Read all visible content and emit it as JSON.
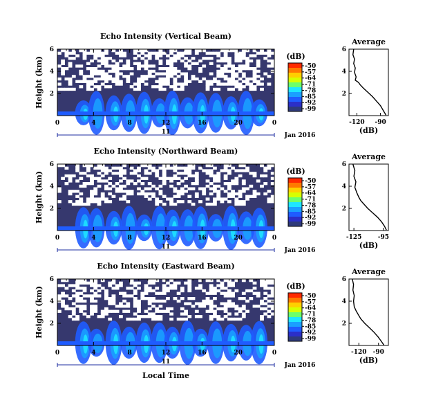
{
  "colorbar_unit": "(dB)",
  "colorbar_ticks": [
    "-50",
    "-57",
    "-64",
    "-71",
    "-78",
    "-85",
    "-92",
    "-99"
  ],
  "colorbar_colors": [
    "#ff2a00",
    "#ff7a00",
    "#ffd000",
    "#d8ff00",
    "#6cff6c",
    "#1ee6ff",
    "#1aa0ff",
    "#1f5cff",
    "#2b2fc8",
    "#2e3a7a"
  ],
  "background_color": "#36386e",
  "date_label": "Jan 2016",
  "x_label": "Local Time",
  "day_label": "11",
  "panels": [
    {
      "title": "Echo Intensity (Vertical Beam)"
    },
    {
      "title": "Echo Intensity (Northward Beam)"
    },
    {
      "title": "Echo Intensity (Eastward Beam)"
    }
  ],
  "chart_data": [
    {
      "type": "heatmap",
      "title": "Echo Intensity (Vertical Beam)",
      "xlabel": "",
      "ylabel": "Height (km)",
      "xlim": [
        0,
        24
      ],
      "ylim": [
        0,
        6
      ],
      "xticks": [
        "0",
        "4",
        "8",
        "12",
        "16",
        "20",
        "0"
      ],
      "yticks": [
        "2",
        "4",
        "6"
      ],
      "colorbar": {
        "label": "(dB)",
        "range": [
          -99,
          -50
        ]
      },
      "clear_fraction": 0.55
    },
    {
      "type": "line",
      "title": "Average",
      "xlabel": "(dB)",
      "ylabel": "",
      "xlim": [
        -130,
        -80
      ],
      "ylim": [
        0,
        6
      ],
      "xticks": [
        "-120",
        "-90"
      ],
      "yticks": [
        "2",
        "4",
        "6"
      ],
      "x": [
        -83,
        -86,
        -90,
        -95,
        -100,
        -106,
        -112,
        -116,
        -118,
        -122,
        -121,
        -123,
        -122,
        -124,
        -123,
        -125,
        -124
      ],
      "y": [
        0.05,
        0.4,
        0.9,
        1.3,
        1.7,
        2.1,
        2.5,
        2.8,
        3.0,
        3.2,
        3.5,
        3.9,
        4.3,
        4.7,
        5.1,
        5.5,
        6.0
      ]
    },
    {
      "type": "heatmap",
      "title": "Echo Intensity (Northward Beam)",
      "xlabel": "",
      "ylabel": "Height (km)",
      "xlim": [
        0,
        24
      ],
      "ylim": [
        0,
        6
      ],
      "xticks": [
        "0",
        "4",
        "8",
        "12",
        "16",
        "20",
        "0"
      ],
      "yticks": [
        "2",
        "4",
        "6"
      ],
      "colorbar": {
        "label": "(dB)",
        "range": [
          -99,
          -50
        ]
      },
      "clear_fraction": 0.45
    },
    {
      "type": "line",
      "title": "Average",
      "xlabel": "(dB)",
      "ylabel": "",
      "xlim": [
        -130,
        -90
      ],
      "ylim": [
        0,
        6
      ],
      "xticks": [
        "-125",
        "-95"
      ],
      "yticks": [
        "2",
        "4",
        "6"
      ],
      "x": [
        -92,
        -94,
        -97,
        -101,
        -106,
        -111,
        -115,
        -118,
        -120,
        -122,
        -124,
        -123,
        -125,
        -124,
        -126
      ],
      "y": [
        0.05,
        0.4,
        0.8,
        1.2,
        1.6,
        2.0,
        2.4,
        2.7,
        3.0,
        3.4,
        3.9,
        4.4,
        4.9,
        5.4,
        6.0
      ]
    },
    {
      "type": "heatmap",
      "title": "Echo Intensity (Eastward Beam)",
      "xlabel": "Local Time",
      "ylabel": "Height (km)",
      "xlim": [
        0,
        24
      ],
      "ylim": [
        0,
        6
      ],
      "xticks": [
        "0",
        "4",
        "8",
        "12",
        "16",
        "20",
        "0"
      ],
      "yticks": [
        "2",
        "4",
        "6"
      ],
      "colorbar": {
        "label": "(dB)",
        "range": [
          -99,
          -50
        ]
      },
      "clear_fraction": 0.5
    },
    {
      "type": "line",
      "title": "Average",
      "xlabel": "(dB)",
      "ylabel": "",
      "xlim": [
        -135,
        -75
      ],
      "ylim": [
        0,
        6
      ],
      "xticks": [
        "-120",
        "-90"
      ],
      "yticks": [
        "2",
        "4",
        "6"
      ],
      "x": [
        -82,
        -86,
        -91,
        -97,
        -104,
        -111,
        -117,
        -121,
        -124,
        -127,
        -128,
        -127,
        -129,
        -128,
        -130
      ],
      "y": [
        0.05,
        0.4,
        0.8,
        1.2,
        1.6,
        2.0,
        2.4,
        2.8,
        3.1,
        3.5,
        4.0,
        4.5,
        5.0,
        5.5,
        6.0
      ]
    }
  ]
}
